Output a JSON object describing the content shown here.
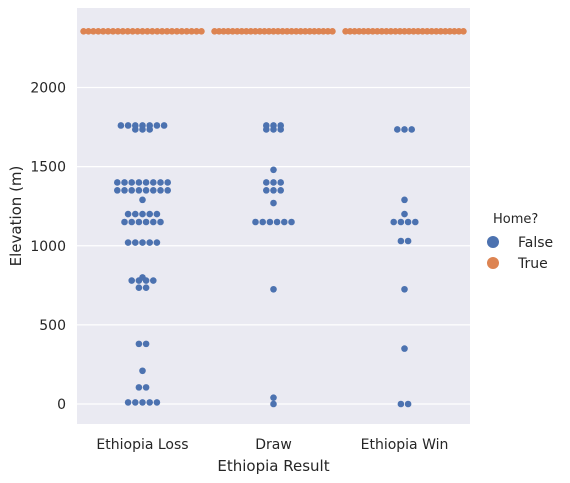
{
  "chart_data": {
    "type": "scatter",
    "subtype": "swarm",
    "title": "",
    "xlabel": "Ethiopia Result",
    "ylabel": "Elevation (m)",
    "categories": [
      "Ethiopia Loss",
      "Draw",
      "Ethiopia Win"
    ],
    "ylim": [
      -130,
      2500
    ],
    "yticks": [
      0,
      500,
      1000,
      1500,
      2000
    ],
    "grid": true,
    "legend": {
      "title": "Home?",
      "placement": "right",
      "entries": [
        {
          "label": "False",
          "color": "#4c72b0"
        },
        {
          "label": "True",
          "color": "#dd8452"
        }
      ]
    },
    "series": [
      {
        "name": "False",
        "color": "#4c72b0",
        "values_by_category": [
          [
            1760,
            1760,
            1760,
            1760,
            1735,
            1735,
            1735,
            1760,
            1760,
            1760,
            1400,
            1400,
            1400,
            1400,
            1400,
            1400,
            1400,
            1400,
            1350,
            1350,
            1350,
            1350,
            1350,
            1350,
            1350,
            1350,
            1290,
            1200,
            1200,
            1200,
            1200,
            1200,
            1150,
            1150,
            1150,
            1150,
            1150,
            1150,
            1020,
            1020,
            1030,
            1030,
            1030,
            800,
            780,
            780,
            780,
            780,
            735,
            735,
            380,
            380,
            210,
            105,
            105,
            10,
            0,
            0,
            0,
            0
          ],
          [
            1760,
            1760,
            1735,
            1735,
            1735,
            1760,
            1480,
            1400,
            1400,
            1400,
            1350,
            1350,
            1350,
            1270,
            1150,
            1150,
            1150,
            1150,
            1150,
            1150,
            725,
            40,
            0
          ],
          [
            1735,
            1735,
            1735,
            1290,
            1200,
            1150,
            1150,
            1150,
            1150,
            1030,
            1020,
            725,
            350,
            0,
            0
          ]
        ]
      },
      {
        "name": "True",
        "color": "#dd8452",
        "values_by_category": [
          [
            2355,
            2355,
            2355,
            2355,
            2355,
            2355,
            2355,
            2355,
            2355,
            2355,
            2355,
            2355,
            2355,
            2355,
            2355,
            2355,
            2355,
            2355,
            2355,
            2355,
            2355,
            2355,
            2355,
            2355,
            2355
          ],
          [
            2355,
            2355,
            2355,
            2355,
            2355,
            2355,
            2355,
            2355,
            2355,
            2355,
            2355,
            2355,
            2355,
            2355,
            2355,
            2355,
            2355,
            2355,
            2355,
            2355,
            2355,
            2355,
            2355,
            2355,
            2355,
            2355,
            2355
          ],
          [
            2355,
            2355,
            2355,
            2355,
            2355,
            2355,
            2355,
            2355,
            2355,
            2355,
            2355,
            2355,
            2355,
            2355,
            2355,
            2355,
            2355,
            2355,
            2355,
            2355,
            2355,
            2355,
            2355,
            2355,
            2355,
            2355,
            2355
          ]
        ]
      }
    ]
  }
}
